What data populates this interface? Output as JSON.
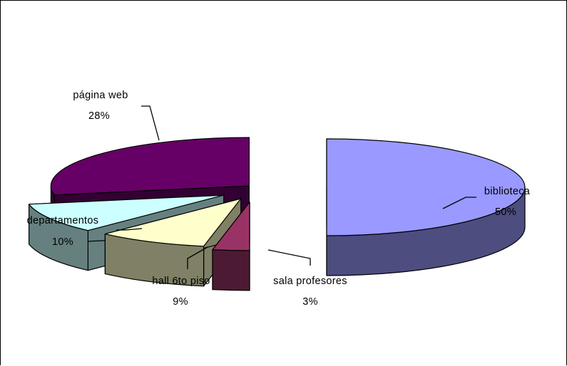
{
  "chart_data": {
    "type": "pie",
    "variant": "3d-exploded",
    "title": "",
    "slices": [
      {
        "label": "biblioteca",
        "percent_label": "50%",
        "value": 50,
        "top_color": "#9999FF",
        "side_color": "#4D4D80"
      },
      {
        "label": "sala profesores",
        "percent_label": "3%",
        "value": 3,
        "top_color": "#993366",
        "side_color": "#4D1A33"
      },
      {
        "label": "hall 6to piso",
        "percent_label": "9%",
        "value": 9,
        "top_color": "#FFFFCC",
        "side_color": "#808066"
      },
      {
        "label": "departamentos",
        "percent_label": "10%",
        "value": 10,
        "top_color": "#CCFFFF",
        "side_color": "#668080"
      },
      {
        "label": "página web",
        "percent_label": "28%",
        "value": 28,
        "top_color": "#660066",
        "side_color": "#330033"
      }
    ]
  }
}
